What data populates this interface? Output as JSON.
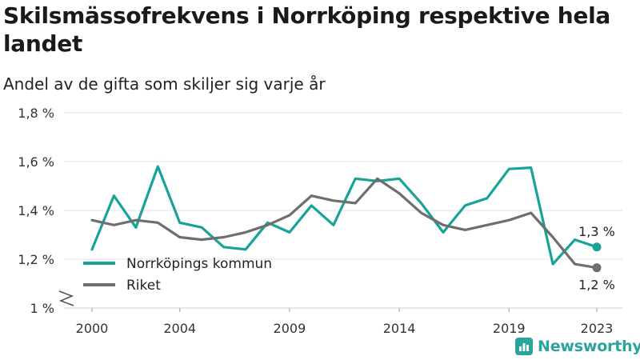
{
  "title": "Skilsmässofrekvens i Norrköping respektive hela landet",
  "subtitle": "Andel av de gifta som skiljer sig varje år",
  "brand": {
    "name": "Newsworthy",
    "icon": "bar-chart-icon",
    "color": "#2ba59c"
  },
  "chart_data": {
    "type": "line",
    "x": [
      2000,
      2001,
      2002,
      2003,
      2004,
      2005,
      2006,
      2007,
      2008,
      2009,
      2010,
      2011,
      2012,
      2013,
      2014,
      2015,
      2016,
      2017,
      2018,
      2019,
      2020,
      2021,
      2022,
      2023
    ],
    "xticks": [
      2000,
      2004,
      2009,
      2014,
      2019,
      2023
    ],
    "yticks": [
      1.0,
      1.2,
      1.4,
      1.6,
      1.8
    ],
    "ytick_labels": [
      "1 %",
      "1,2 %",
      "1,4 %",
      "1,6 %",
      "1,8 %"
    ],
    "ylim": [
      1.0,
      1.8
    ],
    "grid": true,
    "axis_break": true,
    "legend_position": "bottom-left",
    "series": [
      {
        "name": "Norrköpings kommun",
        "color": "#17a398",
        "values": [
          1.24,
          1.46,
          1.33,
          1.58,
          1.35,
          1.33,
          1.25,
          1.24,
          1.35,
          1.31,
          1.42,
          1.34,
          1.53,
          1.52,
          1.53,
          1.43,
          1.31,
          1.42,
          1.45,
          1.57,
          1.575,
          1.18,
          1.28,
          1.25
        ],
        "end_label": "1,3 %"
      },
      {
        "name": "Riket",
        "color": "#6e6e6e",
        "values": [
          1.36,
          1.34,
          1.36,
          1.35,
          1.29,
          1.28,
          1.29,
          1.31,
          1.34,
          1.38,
          1.46,
          1.44,
          1.43,
          1.53,
          1.47,
          1.39,
          1.34,
          1.32,
          1.34,
          1.36,
          1.39,
          1.29,
          1.18,
          1.165
        ],
        "end_label": "1,2 %"
      }
    ]
  }
}
